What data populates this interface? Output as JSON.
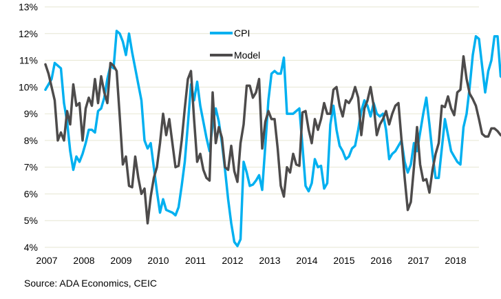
{
  "chart_data": {
    "type": "line",
    "title": "",
    "xlabel": "",
    "ylabel": "",
    "ylim": [
      4,
      13
    ],
    "y_ticks": [
      "4%",
      "5%",
      "6%",
      "7%",
      "8%",
      "9%",
      "10%",
      "11%",
      "12%",
      "13%"
    ],
    "y_tick_values": [
      4,
      5,
      6,
      7,
      8,
      9,
      10,
      11,
      12,
      13
    ],
    "x_ticks": [
      "2007",
      "2008",
      "2009",
      "2010",
      "2011",
      "2012",
      "2013",
      "2014",
      "2015",
      "2016",
      "2017",
      "2018"
    ],
    "x_start": "2007-01",
    "x_frequency": "monthly",
    "grid": true,
    "legend_position": "top-center",
    "series": [
      {
        "name": "CPI",
        "color": "#00B0F0",
        "values": [
          9.9,
          10.1,
          10.3,
          10.9,
          10.8,
          10.7,
          9.4,
          8.7,
          7.6,
          6.9,
          7.4,
          7.2,
          7.5,
          7.9,
          8.4,
          8.4,
          8.3,
          9.1,
          9.2,
          9.6,
          10.3,
          10.8,
          10.7,
          12.1,
          12.0,
          11.7,
          11.2,
          12.0,
          11.3,
          10.7,
          10.1,
          9.5,
          8.0,
          7.7,
          7.9,
          7.0,
          6.1,
          5.3,
          5.8,
          5.4,
          5.35,
          5.3,
          5.2,
          5.5,
          6.3,
          7.2,
          8.6,
          10.1,
          9.5,
          10.2,
          9.3,
          8.7,
          8.1,
          7.6,
          8.6,
          9.2,
          8.7,
          7.9,
          6.9,
          5.8,
          4.9,
          4.2,
          4.05,
          4.3,
          7.2,
          6.8,
          6.3,
          6.35,
          6.5,
          6.7,
          6.15,
          7.8,
          9.5,
          10.5,
          10.6,
          10.5,
          10.5,
          11.1,
          9.0,
          9.0,
          9.0,
          9.1,
          9.2,
          7.8,
          6.3,
          6.1,
          6.4,
          7.3,
          7.0,
          7.05,
          6.2,
          6.4,
          8.6,
          9.3,
          8.4,
          7.8,
          7.6,
          7.3,
          7.4,
          7.7,
          7.8,
          8.4,
          9.1,
          9.5,
          9.3,
          8.9,
          9.4,
          9.0,
          8.9,
          9.0,
          8.4,
          7.3,
          7.5,
          7.6,
          7.8,
          8.0,
          7.2,
          6.8,
          7.1,
          7.9,
          7.6,
          8.3,
          9.0,
          9.6,
          8.6,
          7.5,
          6.6,
          6.6,
          7.7,
          8.8,
          8.2,
          7.6,
          7.4,
          7.2,
          7.1,
          8.5,
          9.0,
          10.0,
          11.2,
          11.9,
          11.8,
          10.8,
          9.8,
          10.6,
          11.0,
          11.9,
          11.9,
          10.4,
          10.3,
          10.25
        ]
      },
      {
        "name": "Model",
        "color": "#4D4B4B",
        "values": [
          10.85,
          10.5,
          10.0,
          9.5,
          8.0,
          8.3,
          8.0,
          9.1,
          8.6,
          10.1,
          9.3,
          9.4,
          8.0,
          9.2,
          9.6,
          9.3,
          10.3,
          9.4,
          10.4,
          9.8,
          9.4,
          10.9,
          10.8,
          10.6,
          8.9,
          7.1,
          7.4,
          6.3,
          6.25,
          7.4,
          6.6,
          6.0,
          6.2,
          4.9,
          5.9,
          6.6,
          7.0,
          7.9,
          9.0,
          8.2,
          8.8,
          7.9,
          7.0,
          7.05,
          8.0,
          9.2,
          10.3,
          10.6,
          8.8,
          7.2,
          7.5,
          6.9,
          6.6,
          6.5,
          9.8,
          7.9,
          8.5,
          8.1,
          7.0,
          6.9,
          7.8,
          6.85,
          6.45,
          7.9,
          8.6,
          10.05,
          10.05,
          9.6,
          9.8,
          10.3,
          7.7,
          8.7,
          9.1,
          8.8,
          8.8,
          7.7,
          6.3,
          5.9,
          7.0,
          6.8,
          7.5,
          7.1,
          7.05,
          9.05,
          9.1,
          8.4,
          7.9,
          8.8,
          8.4,
          8.8,
          9.4,
          9.0,
          9.0,
          9.9,
          10.0,
          9.3,
          8.9,
          9.5,
          9.4,
          9.6,
          10.0,
          9.6,
          8.2,
          9.2,
          9.5,
          10.0,
          9.3,
          8.2,
          8.6,
          8.8,
          9.1,
          8.6,
          9.0,
          9.3,
          9.4,
          8.0,
          6.6,
          5.4,
          5.7,
          7.0,
          8.5,
          7.1,
          6.5,
          6.55,
          6.05,
          6.9,
          7.5,
          7.9,
          9.3,
          9.25,
          9.65,
          9.2,
          8.95,
          9.8,
          9.9,
          11.15,
          10.3,
          9.75,
          9.55,
          9.3,
          8.8,
          8.25,
          8.15,
          8.15,
          8.45,
          8.45,
          8.35,
          8.2,
          8.15,
          8.25
        ]
      }
    ]
  },
  "legend": {
    "items": [
      {
        "label": "CPI",
        "color": "#00B0F0"
      },
      {
        "label": "Model",
        "color": "#4D4B4B"
      }
    ]
  },
  "source": "Source: ADA Economics, CEIC"
}
